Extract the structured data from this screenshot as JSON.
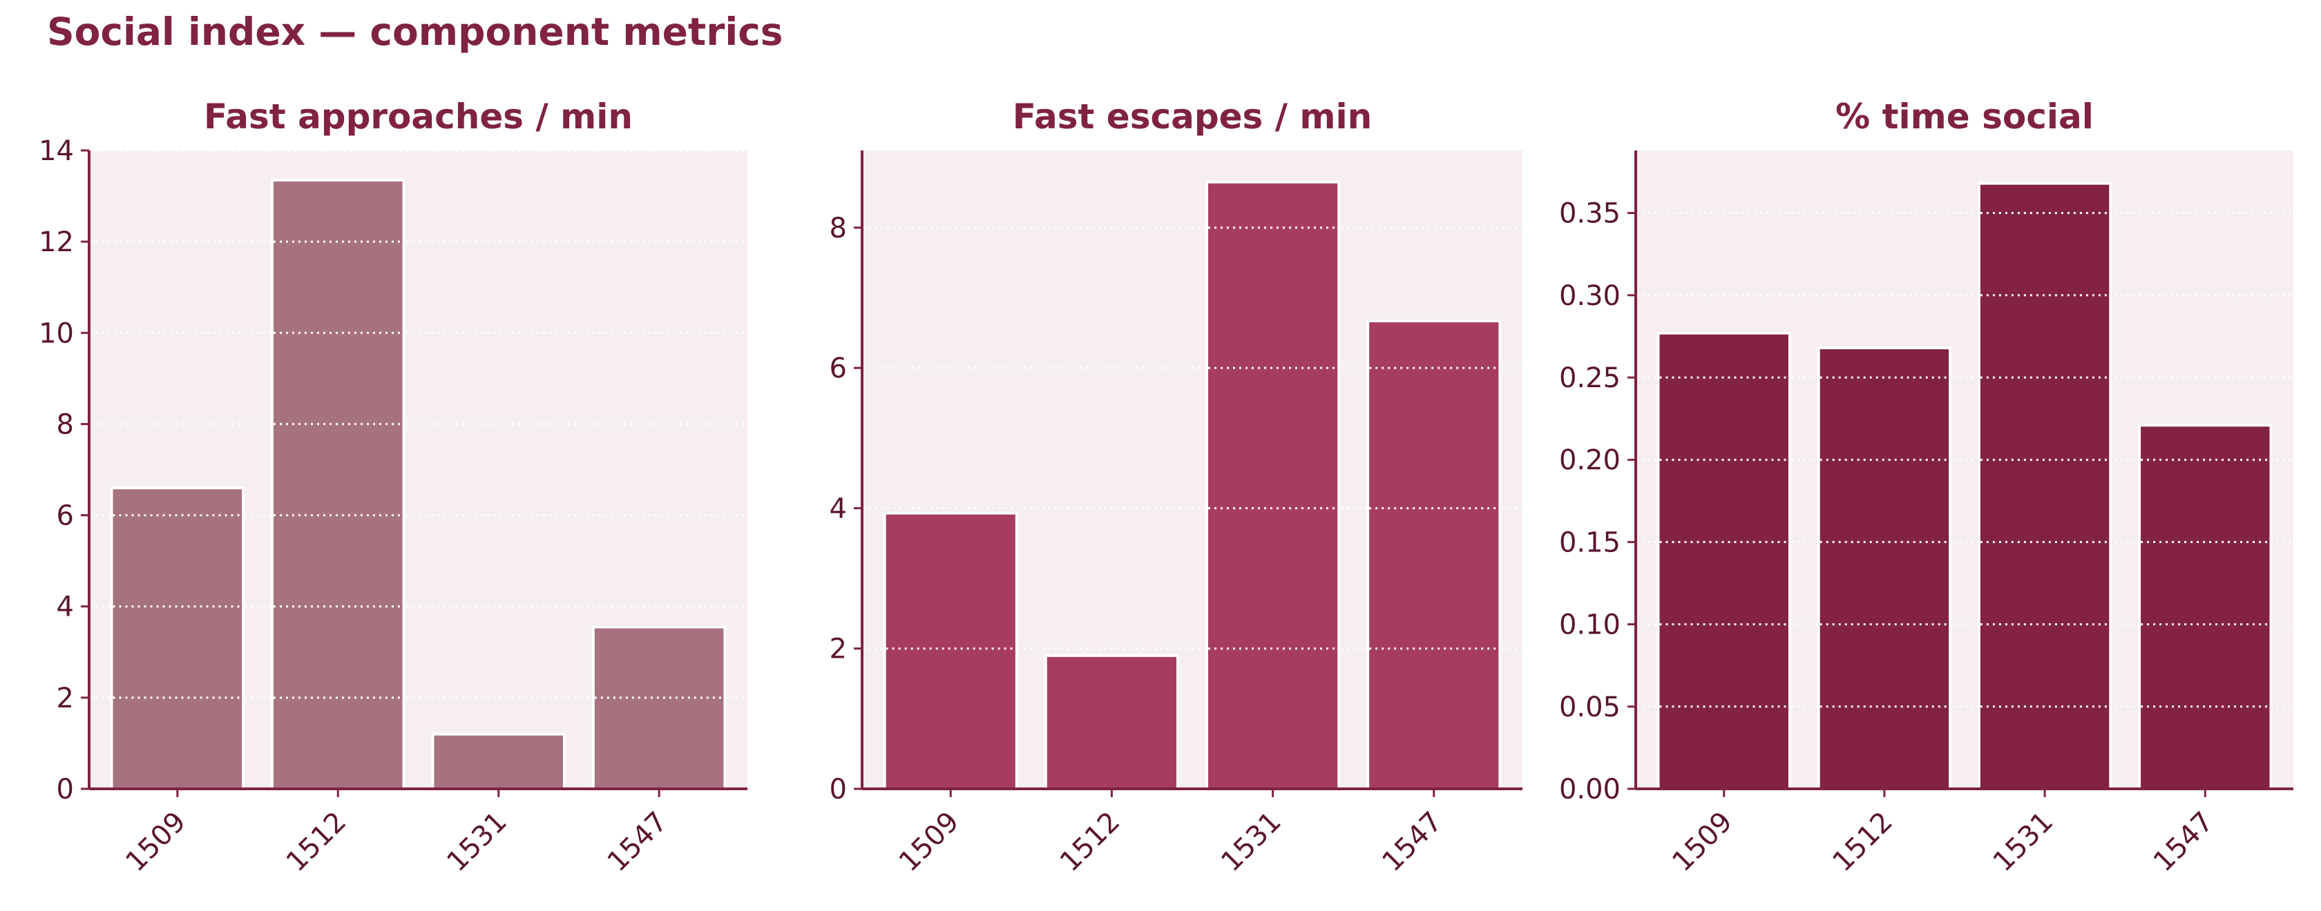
{
  "figure": {
    "title": "Social index — component metrics"
  },
  "colors": {
    "title": "#7f2244",
    "tick_text": "#5a1430",
    "axis_spine": "#7f2244",
    "panel_background": "#f6eef1",
    "gridline": "#ffffff",
    "bar_edge": "#ffffff"
  },
  "chart_data": [
    {
      "type": "bar",
      "title": "Fast approaches / min",
      "xlabel": "",
      "ylabel": "",
      "categories": [
        "1509",
        "1512",
        "1531",
        "1547"
      ],
      "values": [
        6.6,
        13.35,
        1.2,
        3.55
      ],
      "ylim": [
        0,
        14
      ],
      "yticks": [
        0,
        2,
        4,
        6,
        8,
        10,
        12,
        14
      ],
      "ytick_labels": [
        "0",
        "2",
        "4",
        "6",
        "8",
        "10",
        "12",
        "14"
      ],
      "bar_color": "#a67280",
      "grid": true
    },
    {
      "type": "bar",
      "title": "Fast escapes / min",
      "xlabel": "",
      "ylabel": "",
      "categories": [
        "1509",
        "1512",
        "1531",
        "1547"
      ],
      "values": [
        3.93,
        1.9,
        8.65,
        6.67
      ],
      "ylim": [
        0,
        9.1
      ],
      "yticks": [
        0,
        2,
        4,
        6,
        8
      ],
      "ytick_labels": [
        "0",
        "2",
        "4",
        "6",
        "8"
      ],
      "bar_color": "#a63d5f",
      "grid": true
    },
    {
      "type": "bar",
      "title": "% time social",
      "xlabel": "",
      "ylabel": "",
      "categories": [
        "1509",
        "1512",
        "1531",
        "1547"
      ],
      "values": [
        0.277,
        0.268,
        0.368,
        0.221
      ],
      "ylim": [
        0,
        0.388
      ],
      "yticks": [
        0,
        0.05,
        0.1,
        0.15,
        0.2,
        0.25,
        0.3,
        0.35
      ],
      "ytick_labels": [
        "0.00",
        "0.05",
        "0.10",
        "0.15",
        "0.20",
        "0.25",
        "0.30",
        "0.35"
      ],
      "bar_color": "#832242",
      "grid": true
    }
  ]
}
